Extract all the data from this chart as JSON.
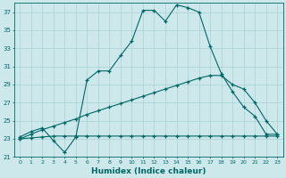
{
  "xlabel": "Humidex (Indice chaleur)",
  "ylabel": "",
  "bg_color": "#cce8eb",
  "grid_color": "#aad0d5",
  "line_color": "#006666",
  "xlim": [
    -0.5,
    23.5
  ],
  "ylim": [
    21,
    38
  ],
  "yticks": [
    21,
    23,
    25,
    27,
    29,
    31,
    33,
    35,
    37
  ],
  "xticks": [
    0,
    1,
    2,
    3,
    4,
    5,
    6,
    7,
    8,
    9,
    10,
    11,
    12,
    13,
    14,
    15,
    16,
    17,
    18,
    19,
    20,
    21,
    22,
    23
  ],
  "line1_x": [
    0,
    1,
    2,
    3,
    4,
    5,
    6,
    7,
    8,
    9,
    10,
    11,
    12,
    13,
    14,
    15,
    16,
    17,
    18,
    19,
    20,
    21,
    22,
    23
  ],
  "line1_y": [
    23.2,
    23.8,
    24.2,
    22.8,
    21.5,
    23.2,
    29.5,
    30.5,
    30.5,
    32.2,
    33.8,
    37.2,
    37.2,
    36.0,
    37.8,
    37.5,
    37.0,
    33.2,
    30.2,
    28.2,
    26.5,
    25.5,
    23.5,
    23.5
  ],
  "line2_x": [
    0,
    1,
    2,
    3,
    4,
    5,
    6,
    7,
    8,
    9,
    10,
    11,
    12,
    13,
    14,
    15,
    16,
    17,
    18,
    19,
    20,
    21,
    22,
    23
  ],
  "line2_y": [
    23.0,
    23.5,
    24.0,
    24.4,
    24.8,
    25.2,
    25.7,
    26.1,
    26.5,
    26.9,
    27.3,
    27.7,
    28.1,
    28.5,
    28.9,
    29.3,
    29.7,
    30.0,
    30.0,
    29.0,
    28.5,
    27.0,
    25.0,
    23.5
  ],
  "line3_x": [
    0,
    1,
    2,
    3,
    4,
    5,
    6,
    7,
    8,
    9,
    10,
    11,
    12,
    13,
    14,
    15,
    16,
    17,
    18,
    19,
    20,
    21,
    22,
    23
  ],
  "line3_y": [
    23.0,
    23.1,
    23.2,
    23.3,
    23.3,
    23.3,
    23.3,
    23.3,
    23.3,
    23.3,
    23.3,
    23.3,
    23.3,
    23.3,
    23.3,
    23.3,
    23.3,
    23.3,
    23.3,
    23.3,
    23.3,
    23.3,
    23.3,
    23.3
  ]
}
